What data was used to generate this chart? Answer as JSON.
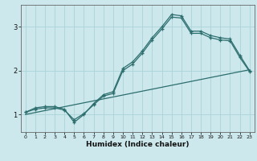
{
  "title": "",
  "xlabel": "Humidex (Indice chaleur)",
  "bg_color": "#cce8ec",
  "grid_color": "#aad4d8",
  "line_color": "#2d6e6e",
  "xlim": [
    -0.5,
    23.5
  ],
  "ylim": [
    0.6,
    3.5
  ],
  "xticks": [
    0,
    1,
    2,
    3,
    4,
    5,
    6,
    7,
    8,
    9,
    10,
    11,
    12,
    13,
    14,
    15,
    16,
    17,
    18,
    19,
    20,
    21,
    22,
    23
  ],
  "yticks": [
    1,
    2,
    3
  ],
  "line1_x": [
    0,
    1,
    2,
    3,
    4,
    5,
    6,
    7,
    8,
    9,
    10,
    11,
    12,
    13,
    14,
    15,
    16,
    17,
    18,
    19,
    20,
    21,
    22,
    23
  ],
  "line1_y": [
    1.05,
    1.15,
    1.18,
    1.18,
    1.12,
    0.82,
    1.0,
    1.25,
    1.45,
    1.52,
    2.05,
    2.2,
    2.45,
    2.75,
    3.0,
    3.28,
    3.25,
    2.9,
    2.9,
    2.8,
    2.75,
    2.72,
    2.35,
    2.0
  ],
  "line2_x": [
    0,
    1,
    2,
    3,
    4,
    5,
    6,
    7,
    8,
    9,
    10,
    11,
    12,
    13,
    14,
    15,
    16,
    17,
    18,
    19,
    20,
    21,
    22,
    23
  ],
  "line2_y": [
    1.05,
    1.12,
    1.15,
    1.15,
    1.1,
    0.88,
    1.02,
    1.22,
    1.42,
    1.48,
    2.0,
    2.15,
    2.4,
    2.7,
    2.95,
    3.22,
    3.2,
    2.85,
    2.85,
    2.75,
    2.7,
    2.68,
    2.3,
    1.98
  ],
  "line3_x": [
    0,
    23
  ],
  "line3_y": [
    1.0,
    2.02
  ]
}
